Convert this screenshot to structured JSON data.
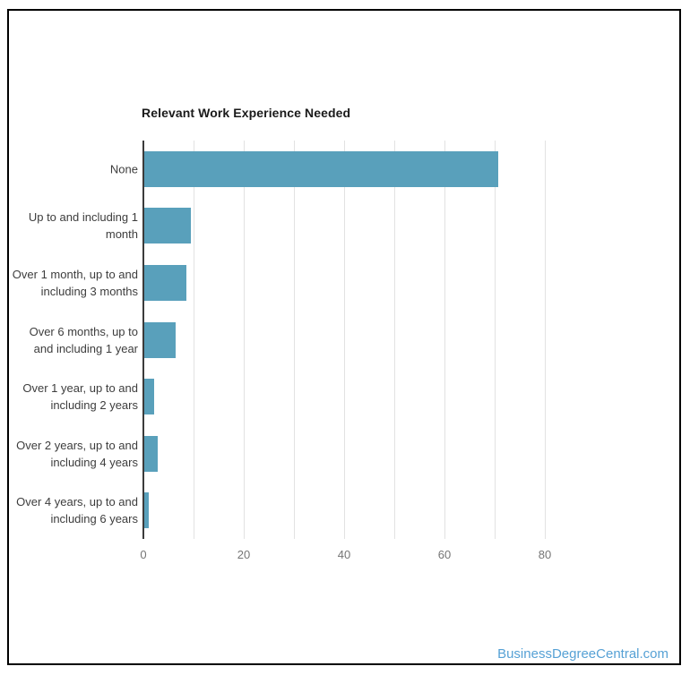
{
  "page": {
    "watermark": "BusinessDegreeCentral.com"
  },
  "chart_data": {
    "type": "bar",
    "orientation": "horizontal",
    "title": "Relevant Work Experience Needed",
    "categories": [
      "None",
      "Up to and including 1 month",
      "Over 1 month, up to and including 3 months",
      "Over 6 months, up to and including 1 year",
      "Over 1 year, up to and including 2 years",
      "Over 2 years, up to and including 4 years",
      "Over 4 years, up to and including 6 years"
    ],
    "values": [
      70.7,
      9.5,
      8.6,
      6.5,
      2.2,
      2.9,
      1.0
    ],
    "xlabel": "",
    "ylabel": "",
    "xlim": [
      0,
      90
    ],
    "xticks": [
      0,
      20,
      40,
      60,
      80
    ],
    "gridlines": [
      0,
      10,
      20,
      30,
      40,
      50,
      60,
      70,
      80
    ],
    "grid": true,
    "legend": "none",
    "colors": {
      "bar": "#59A0BB",
      "gridline": "#e2e2e2",
      "axis_line": "#3b3b3b",
      "tick_label": "#757575",
      "category_label": "#3d3d3d",
      "title": "#1a1a1a",
      "watermark": "#56A1D5",
      "frame_border": "#000000"
    }
  }
}
